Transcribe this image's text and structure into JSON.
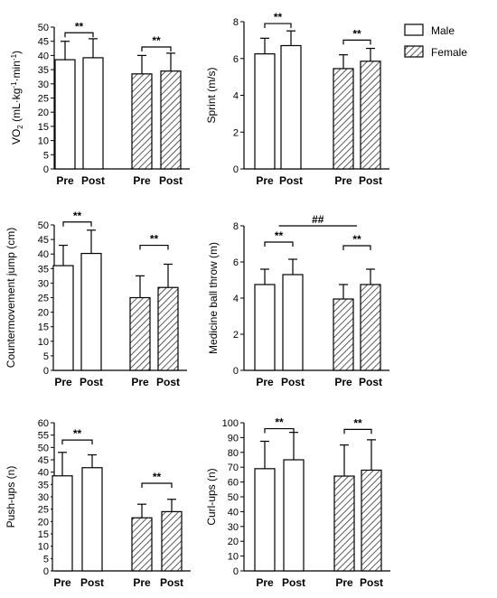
{
  "legend": [
    {
      "label": "Male",
      "pattern": "open"
    },
    {
      "label": "Female",
      "pattern": "hatched"
    }
  ],
  "chart_data": [
    {
      "type": "bar",
      "ylabel_main": "VO",
      "ylabel_sub": "2",
      "ylabel_rest": " (mL·kg",
      "ylabel_sup1": "-1",
      "ylabel_mid": "·min",
      "ylabel_sup2": "-1",
      "ylabel_end": ")",
      "ylim": [
        0,
        50
      ],
      "yticks": [
        0,
        5,
        10,
        15,
        20,
        25,
        30,
        35,
        40,
        45,
        50
      ],
      "categories": [
        "Pre",
        "Post",
        "Pre",
        "Post"
      ],
      "groups": [
        "Male",
        "Male",
        "Female",
        "Female"
      ],
      "values": [
        38.5,
        39.2,
        33.5,
        34.5
      ],
      "errors": [
        6.5,
        6.7,
        6.5,
        6.3
      ],
      "annotations": [
        {
          "text": "**",
          "from": 0,
          "to": 1,
          "y": 48
        },
        {
          "text": "**",
          "from": 2,
          "to": 3,
          "y": 43
        }
      ]
    },
    {
      "type": "bar",
      "ylabel": "Sprint (m/s)",
      "ylim": [
        0,
        8
      ],
      "yticks": [
        0,
        2,
        4,
        6,
        8
      ],
      "categories": [
        "Pre",
        "Post",
        "Pre",
        "Post"
      ],
      "groups": [
        "Male",
        "Male",
        "Female",
        "Female"
      ],
      "values": [
        6.25,
        6.7,
        5.45,
        5.85
      ],
      "errors": [
        0.85,
        0.8,
        0.75,
        0.7
      ],
      "annotations": [
        {
          "text": "**",
          "from": 0,
          "to": 1,
          "y": 7.9
        },
        {
          "text": "**",
          "from": 2,
          "to": 3,
          "y": 7.0
        }
      ]
    },
    {
      "type": "bar",
      "ylabel": "Countermovement jump (cm)",
      "ylim": [
        0,
        50
      ],
      "yticks": [
        0,
        5,
        10,
        15,
        20,
        25,
        30,
        35,
        40,
        45,
        50
      ],
      "categories": [
        "Pre",
        "Post",
        "Pre",
        "Post"
      ],
      "groups": [
        "Male",
        "Male",
        "Female",
        "Female"
      ],
      "values": [
        36,
        40.2,
        25,
        28.5
      ],
      "errors": [
        7,
        8,
        7.5,
        8
      ],
      "annotations": [
        {
          "text": "**",
          "from": 0,
          "to": 1,
          "y": 51
        },
        {
          "text": "**",
          "from": 2,
          "to": 3,
          "y": 43
        }
      ]
    },
    {
      "type": "bar",
      "ylabel": "Medicine ball throw (m)",
      "ylim": [
        0,
        8
      ],
      "yticks": [
        0,
        2,
        4,
        6,
        8
      ],
      "categories": [
        "Pre",
        "Post",
        "Pre",
        "Post"
      ],
      "groups": [
        "Male",
        "Male",
        "Female",
        "Female"
      ],
      "values": [
        4.75,
        5.3,
        3.95,
        4.75
      ],
      "errors": [
        0.85,
        0.85,
        0.8,
        0.85
      ],
      "annotations": [
        {
          "text": "**",
          "from": 0,
          "to": 1,
          "y": 7.1
        },
        {
          "text": "**",
          "from": 2,
          "to": 3,
          "y": 6.9
        },
        {
          "text": "##",
          "from": 0.5,
          "to": 2.5,
          "y": 8.0,
          "plain": true
        }
      ]
    },
    {
      "type": "bar",
      "ylabel": "Push-ups (n)",
      "ylim": [
        0,
        60
      ],
      "yticks": [
        0,
        5,
        10,
        15,
        20,
        25,
        30,
        35,
        40,
        45,
        50,
        55,
        60
      ],
      "categories": [
        "Pre",
        "Post",
        "Pre",
        "Post"
      ],
      "groups": [
        "Male",
        "Male",
        "Female",
        "Female"
      ],
      "values": [
        38.5,
        41.8,
        21.5,
        24
      ],
      "errors": [
        9.5,
        5.2,
        5.5,
        5
      ],
      "annotations": [
        {
          "text": "**",
          "from": 0,
          "to": 1,
          "y": 53
        },
        {
          "text": "**",
          "from": 2,
          "to": 3,
          "y": 35.5
        }
      ]
    },
    {
      "type": "bar",
      "ylabel": "Curl-ups (n)",
      "ylim": [
        0,
        100
      ],
      "yticks": [
        0,
        10,
        20,
        30,
        40,
        50,
        60,
        70,
        80,
        90,
        100
      ],
      "categories": [
        "Pre",
        "Post",
        "Pre",
        "Post"
      ],
      "groups": [
        "Male",
        "Male",
        "Female",
        "Female"
      ],
      "values": [
        69,
        75,
        64,
        68
      ],
      "errors": [
        18.5,
        18.5,
        21,
        20.5
      ],
      "annotations": [
        {
          "text": "**",
          "from": 0,
          "to": 1,
          "y": 96
        },
        {
          "text": "**",
          "from": 2,
          "to": 3,
          "y": 95.5
        }
      ]
    }
  ]
}
